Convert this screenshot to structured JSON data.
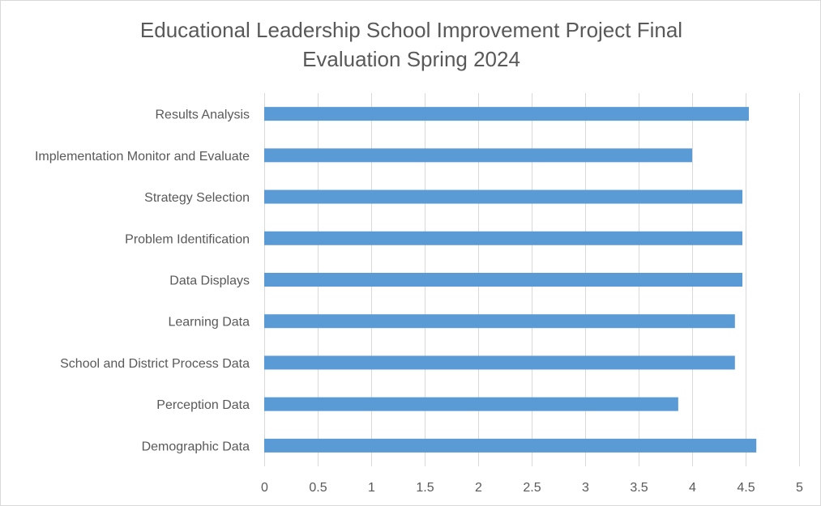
{
  "chart_data": {
    "type": "bar",
    "orientation": "horizontal",
    "title_line1": "Educational Leadership School Improvement Project Final",
    "title_line2": "Evaluation Spring 2024",
    "categories": [
      "Results Analysis",
      "Implementation Monitor and Evaluate",
      "Strategy Selection",
      "Problem Identification",
      "Data Displays",
      "Learning Data",
      "School and District Process Data",
      "Perception Data",
      "Demographic Data"
    ],
    "values": [
      4.53,
      4.0,
      4.47,
      4.47,
      4.47,
      4.4,
      4.4,
      3.87,
      4.6
    ],
    "x_ticks": [
      "0",
      "0.5",
      "1",
      "1.5",
      "2",
      "2.5",
      "3",
      "3.5",
      "4",
      "4.5",
      "5"
    ],
    "xlim": [
      0,
      5
    ],
    "grid": "vertical",
    "legend": "none",
    "bar_color": "#5b9bd5",
    "grid_color": "#d9d9d9"
  }
}
